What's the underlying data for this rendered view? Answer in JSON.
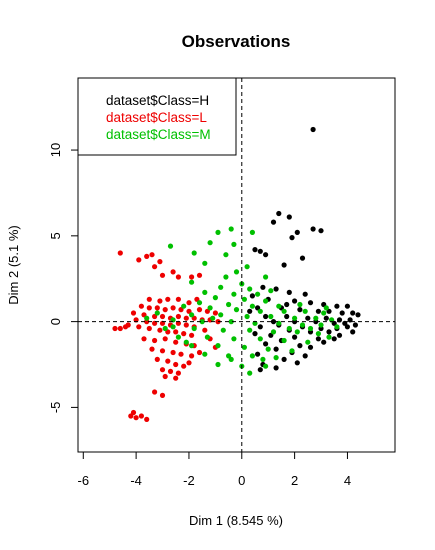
{
  "chart_data": {
    "type": "scatter",
    "title": "Observations",
    "xlabel": "Dim 1 (8.545 %)",
    "ylabel": "Dim 2 (5.1 %)",
    "xlim": [
      -6.2,
      5.8
    ],
    "ylim": [
      -7.6,
      14.2
    ],
    "xticks": [
      -6,
      -4,
      -2,
      0,
      2,
      4
    ],
    "yticks": [
      -5,
      0,
      5,
      10
    ],
    "xtick_labels": [
      "-6",
      "-4",
      "-2",
      "0",
      "2",
      "4"
    ],
    "ytick_labels": [
      "-5",
      "0",
      "5",
      "10"
    ],
    "grid": false,
    "reference_lines": {
      "x": 0,
      "y": 0,
      "style": "dashed"
    },
    "legend": {
      "position": "top-left",
      "entries": [
        {
          "label": "dataset$Class=H",
          "color": "#000000"
        },
        {
          "label": "dataset$Class=L",
          "color": "#ee0000"
        },
        {
          "label": "dataset$Class=M",
          "color": "#00c000"
        }
      ]
    },
    "series": [
      {
        "color": "#000000",
        "points": [
          [
            2.7,
            11.2
          ],
          [
            1.4,
            6.3
          ],
          [
            1.8,
            6.1
          ],
          [
            1.2,
            5.8
          ],
          [
            2.7,
            5.4
          ],
          [
            3.0,
            5.3
          ],
          [
            2.1,
            5.2
          ],
          [
            1.9,
            4.9
          ],
          [
            0.5,
            4.2
          ],
          [
            0.7,
            4.1
          ],
          [
            0.9,
            3.9
          ],
          [
            2.3,
            3.7
          ],
          [
            1.6,
            3.3
          ],
          [
            0.8,
            2.0
          ],
          [
            1.3,
            1.9
          ],
          [
            1.8,
            1.7
          ],
          [
            2.4,
            1.6
          ],
          [
            0.4,
            1.5
          ],
          [
            1.0,
            1.3
          ],
          [
            2.0,
            1.2
          ],
          [
            2.6,
            1.1
          ],
          [
            3.1,
            1.0
          ],
          [
            3.6,
            0.9
          ],
          [
            4.0,
            0.9
          ],
          [
            0.6,
            0.8
          ],
          [
            1.5,
            0.8
          ],
          [
            2.2,
            0.7
          ],
          [
            2.9,
            0.6
          ],
          [
            3.3,
            0.6
          ],
          [
            3.8,
            0.5
          ],
          [
            4.2,
            0.5
          ],
          [
            4.4,
            0.4
          ],
          [
            0.9,
            0.3
          ],
          [
            1.7,
            0.3
          ],
          [
            2.5,
            0.2
          ],
          [
            3.2,
            0.2
          ],
          [
            3.7,
            0.1
          ],
          [
            4.1,
            0.1
          ],
          [
            1.2,
            0.0
          ],
          [
            2.0,
            0.0
          ],
          [
            2.8,
            0.0
          ],
          [
            3.5,
            -0.1
          ],
          [
            3.9,
            -0.1
          ],
          [
            4.3,
            -0.2
          ],
          [
            1.4,
            -0.2
          ],
          [
            0.7,
            -0.3
          ],
          [
            2.3,
            -0.3
          ],
          [
            3.0,
            -0.4
          ],
          [
            3.6,
            -0.4
          ],
          [
            4.0,
            -0.3
          ],
          [
            1.8,
            -0.5
          ],
          [
            2.6,
            -0.6
          ],
          [
            3.3,
            -0.6
          ],
          [
            0.5,
            -0.7
          ],
          [
            1.1,
            -0.8
          ],
          [
            2.0,
            -0.9
          ],
          [
            2.9,
            -1.0
          ],
          [
            3.5,
            -1.0
          ],
          [
            1.5,
            -1.1
          ],
          [
            0.9,
            -1.3
          ],
          [
            2.2,
            -1.4
          ],
          [
            2.6,
            -1.5
          ],
          [
            1.3,
            -1.6
          ],
          [
            1.9,
            -1.8
          ],
          [
            0.6,
            -1.9
          ],
          [
            2.4,
            -2.0
          ],
          [
            1.6,
            -2.2
          ],
          [
            2.1,
            -2.4
          ],
          [
            0.8,
            -2.5
          ],
          [
            1.3,
            -2.7
          ],
          [
            0.7,
            -2.8
          ],
          [
            3.1,
            -1.2
          ],
          [
            3.7,
            -0.8
          ],
          [
            4.2,
            -0.6
          ],
          [
            1.7,
            1.0
          ],
          [
            0.3,
            0.6
          ]
        ]
      },
      {
        "color": "#ee0000",
        "points": [
          [
            -4.6,
            4.0
          ],
          [
            -3.9,
            3.6
          ],
          [
            -3.6,
            3.8
          ],
          [
            -3.4,
            3.9
          ],
          [
            -3.1,
            3.5
          ],
          [
            -3.3,
            3.2
          ],
          [
            -3.0,
            2.7
          ],
          [
            -2.6,
            2.9
          ],
          [
            -2.4,
            2.6
          ],
          [
            -1.9,
            2.6
          ],
          [
            -1.6,
            2.7
          ],
          [
            -3.5,
            1.3
          ],
          [
            -3.1,
            1.2
          ],
          [
            -2.8,
            1.3
          ],
          [
            -2.4,
            1.3
          ],
          [
            -2.0,
            1.1
          ],
          [
            -1.7,
            1.3
          ],
          [
            -3.8,
            0.9
          ],
          [
            -3.5,
            0.8
          ],
          [
            -3.2,
            0.8
          ],
          [
            -2.9,
            0.7
          ],
          [
            -2.6,
            0.8
          ],
          [
            -2.3,
            0.7
          ],
          [
            -2.0,
            0.6
          ],
          [
            -1.6,
            0.7
          ],
          [
            -1.3,
            0.6
          ],
          [
            -1.0,
            0.5
          ],
          [
            -4.1,
            0.5
          ],
          [
            -3.7,
            0.4
          ],
          [
            -3.3,
            0.3
          ],
          [
            -3.0,
            0.3
          ],
          [
            -2.7,
            0.2
          ],
          [
            -2.4,
            0.3
          ],
          [
            -2.1,
            0.2
          ],
          [
            -1.8,
            0.2
          ],
          [
            -1.5,
            0.1
          ],
          [
            -1.2,
            0.1
          ],
          [
            -0.9,
            0.0
          ],
          [
            -4.0,
            0.1
          ],
          [
            -3.6,
            0.0
          ],
          [
            -3.3,
            -0.1
          ],
          [
            -3.0,
            -0.1
          ],
          [
            -2.7,
            -0.2
          ],
          [
            -2.4,
            -0.1
          ],
          [
            -2.1,
            -0.2
          ],
          [
            -1.8,
            -0.3
          ],
          [
            -4.3,
            -0.2
          ],
          [
            -4.6,
            -0.4
          ],
          [
            -4.8,
            -0.4
          ],
          [
            -4.4,
            -0.3
          ],
          [
            -3.9,
            -0.3
          ],
          [
            -3.5,
            -0.4
          ],
          [
            -3.1,
            -0.5
          ],
          [
            -2.8,
            -0.6
          ],
          [
            -2.5,
            -0.6
          ],
          [
            -2.2,
            -0.7
          ],
          [
            -1.9,
            -0.8
          ],
          [
            -3.7,
            -1.0
          ],
          [
            -3.3,
            -1.1
          ],
          [
            -2.9,
            -1.0
          ],
          [
            -2.5,
            -1.2
          ],
          [
            -2.1,
            -1.3
          ],
          [
            -1.8,
            -1.4
          ],
          [
            -3.4,
            -1.6
          ],
          [
            -3.0,
            -1.7
          ],
          [
            -2.6,
            -1.8
          ],
          [
            -2.3,
            -1.9
          ],
          [
            -1.9,
            -2.0
          ],
          [
            -1.6,
            -1.8
          ],
          [
            -3.2,
            -2.2
          ],
          [
            -2.8,
            -2.3
          ],
          [
            -2.5,
            -2.5
          ],
          [
            -2.2,
            -2.6
          ],
          [
            -2.0,
            -2.4
          ],
          [
            -3.0,
            -2.8
          ],
          [
            -2.7,
            -2.9
          ],
          [
            -2.4,
            -3.0
          ],
          [
            -2.9,
            -3.2
          ],
          [
            -2.5,
            -3.3
          ],
          [
            -3.3,
            -4.1
          ],
          [
            -3.0,
            -4.3
          ],
          [
            -4.1,
            -5.3
          ],
          [
            -4.0,
            -5.6
          ],
          [
            -3.8,
            -5.5
          ],
          [
            -4.2,
            -5.5
          ],
          [
            -3.6,
            -5.7
          ],
          [
            -1.2,
            -1.0
          ],
          [
            -1.0,
            -1.5
          ],
          [
            -1.4,
            -0.5
          ]
        ]
      },
      {
        "color": "#00c000",
        "points": [
          [
            -0.4,
            5.4
          ],
          [
            -0.9,
            5.2
          ],
          [
            0.4,
            5.2
          ],
          [
            -2.7,
            4.4
          ],
          [
            -1.2,
            4.6
          ],
          [
            -0.3,
            4.5
          ],
          [
            -1.8,
            4.0
          ],
          [
            -0.6,
            3.9
          ],
          [
            -1.4,
            3.4
          ],
          [
            0.2,
            3.2
          ],
          [
            -0.2,
            2.9
          ],
          [
            0.9,
            2.6
          ],
          [
            -1.9,
            2.3
          ],
          [
            -0.8,
            2.0
          ],
          [
            0.3,
            1.9
          ],
          [
            -1.4,
            1.7
          ],
          [
            -0.3,
            1.6
          ],
          [
            0.6,
            1.6
          ],
          [
            -1.0,
            1.4
          ],
          [
            0.1,
            1.3
          ],
          [
            0.9,
            1.2
          ],
          [
            -1.6,
            1.1
          ],
          [
            -0.5,
            1.0
          ],
          [
            0.4,
            0.9
          ],
          [
            1.4,
            0.9
          ],
          [
            -2.2,
            0.9
          ],
          [
            -1.2,
            0.8
          ],
          [
            -0.2,
            0.7
          ],
          [
            0.7,
            0.6
          ],
          [
            1.6,
            0.6
          ],
          [
            2.4,
            0.6
          ],
          [
            3.1,
            0.5
          ],
          [
            -3.2,
            0.5
          ],
          [
            -1.9,
            0.4
          ],
          [
            -0.8,
            0.4
          ],
          [
            0.2,
            0.3
          ],
          [
            1.1,
            0.3
          ],
          [
            2.0,
            0.2
          ],
          [
            2.8,
            0.2
          ],
          [
            3.4,
            0.1
          ],
          [
            -3.6,
            0.2
          ],
          [
            -2.6,
            0.1
          ],
          [
            -1.5,
            0.0
          ],
          [
            -0.4,
            0.0
          ],
          [
            0.5,
            -0.1
          ],
          [
            1.4,
            -0.1
          ],
          [
            2.3,
            -0.2
          ],
          [
            3.0,
            -0.2
          ],
          [
            3.6,
            -0.3
          ],
          [
            -2.9,
            -0.4
          ],
          [
            -1.8,
            -0.4
          ],
          [
            -0.7,
            -0.5
          ],
          [
            0.3,
            -0.5
          ],
          [
            1.2,
            -0.6
          ],
          [
            2.1,
            -0.6
          ],
          [
            2.9,
            -0.7
          ],
          [
            -2.4,
            -0.9
          ],
          [
            -1.3,
            -0.9
          ],
          [
            -0.3,
            -1.0
          ],
          [
            0.7,
            -1.0
          ],
          [
            1.6,
            -1.1
          ],
          [
            2.5,
            -1.2
          ],
          [
            -1.9,
            -1.4
          ],
          [
            -0.9,
            -1.4
          ],
          [
            0.1,
            -1.5
          ],
          [
            1.0,
            -1.6
          ],
          [
            1.9,
            -1.7
          ],
          [
            -1.4,
            -1.9
          ],
          [
            -0.5,
            -2.0
          ],
          [
            0.4,
            -2.0
          ],
          [
            1.3,
            -2.1
          ],
          [
            -0.9,
            -2.5
          ],
          [
            0.0,
            -2.6
          ],
          [
            0.9,
            -2.6
          ],
          [
            0.3,
            -3.0
          ],
          [
            -0.4,
            -2.2
          ],
          [
            -2.1,
            -1.2
          ],
          [
            1.8,
            -0.4
          ],
          [
            2.6,
            -0.4
          ],
          [
            3.3,
            -0.9
          ],
          [
            0.0,
            2.2
          ],
          [
            -0.6,
            2.6
          ],
          [
            1.1,
            1.8
          ],
          [
            -1.1,
            0.2
          ],
          [
            2.2,
            1.0
          ],
          [
            3.2,
            0.8
          ],
          [
            -2.6,
            -0.3
          ],
          [
            0.8,
            -2.2
          ]
        ]
      }
    ]
  }
}
